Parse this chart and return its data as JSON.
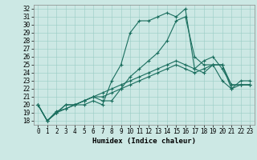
{
  "title": "",
  "xlabel": "Humidex (Indice chaleur)",
  "ylabel": "",
  "bg_color": "#cce8e4",
  "line_color": "#1a6e5e",
  "grid_color": "#99ccc4",
  "xlim": [
    -0.5,
    23.5
  ],
  "ylim": [
    17.5,
    32.5
  ],
  "xticks": [
    0,
    1,
    2,
    3,
    4,
    5,
    6,
    7,
    8,
    9,
    10,
    11,
    12,
    13,
    14,
    15,
    16,
    17,
    18,
    19,
    20,
    21,
    22,
    23
  ],
  "yticks": [
    18,
    19,
    20,
    21,
    22,
    23,
    24,
    25,
    26,
    27,
    28,
    29,
    30,
    31,
    32
  ],
  "series": [
    [
      20.0,
      18.0,
      19.0,
      20.0,
      20.0,
      20.0,
      20.5,
      20.0,
      23.0,
      25.0,
      29.0,
      30.5,
      30.5,
      31.0,
      31.5,
      31.0,
      32.0,
      24.5,
      24.0,
      25.0,
      25.0,
      22.0,
      23.0,
      23.0
    ],
    [
      20.0,
      18.0,
      19.2,
      19.5,
      20.0,
      20.5,
      21.0,
      21.0,
      21.5,
      22.0,
      22.5,
      23.0,
      23.5,
      24.0,
      24.5,
      25.0,
      24.5,
      24.0,
      24.5,
      25.0,
      25.0,
      22.5,
      22.5,
      22.5
    ],
    [
      20.0,
      18.0,
      19.0,
      19.5,
      20.0,
      20.5,
      21.0,
      21.5,
      22.0,
      22.5,
      23.0,
      23.5,
      24.0,
      24.5,
      25.0,
      25.5,
      25.0,
      24.5,
      25.5,
      26.0,
      24.5,
      22.5,
      22.5,
      22.5
    ],
    [
      20.0,
      18.0,
      19.0,
      20.0,
      20.0,
      20.5,
      21.0,
      20.5,
      20.5,
      22.0,
      23.5,
      24.5,
      25.5,
      26.5,
      28.0,
      30.5,
      31.0,
      26.0,
      25.0,
      25.0,
      23.0,
      22.0,
      22.5,
      22.5
    ]
  ],
  "font_family": "monospace",
  "tick_fontsize": 5.5,
  "xlabel_fontsize": 6.5,
  "linewidth": 0.8,
  "marker_size": 3.0
}
